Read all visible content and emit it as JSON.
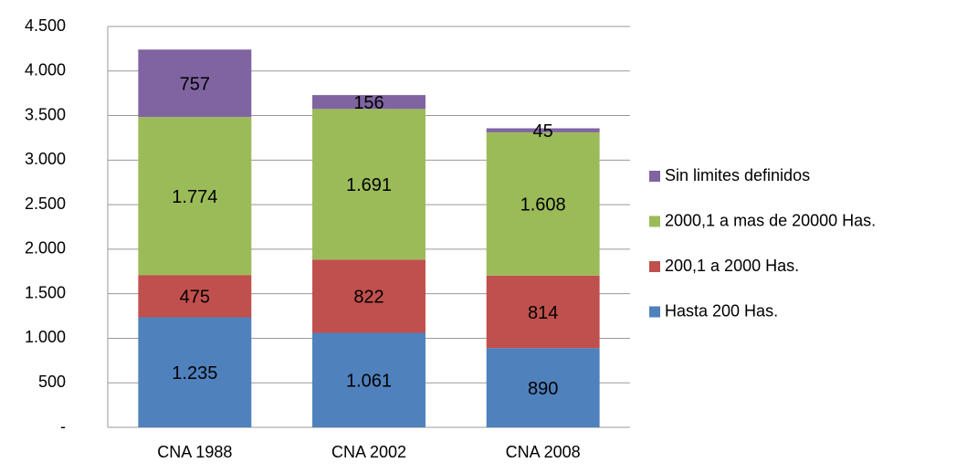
{
  "chart_data": {
    "type": "stacked_bar",
    "categories": [
      "CNA 1988",
      "CNA 2002",
      "CNA 2008"
    ],
    "series": [
      {
        "name": "Hasta 200 Has.",
        "color": "#4f81bd",
        "values": [
          1235,
          1061,
          890
        ],
        "value_labels": [
          "1.235",
          "1.061",
          "890"
        ]
      },
      {
        "name": "200,1 a 2000 Has.",
        "color": "#c0504d",
        "values": [
          475,
          822,
          814
        ],
        "value_labels": [
          "475",
          "822",
          "814"
        ]
      },
      {
        "name": "2000,1 a mas de 20000 Has.",
        "color": "#9bbb59",
        "values": [
          1774,
          1691,
          1608
        ],
        "value_labels": [
          "1.774",
          "1.691",
          "1.608"
        ]
      },
      {
        "name": "Sin limites definidos",
        "color": "#8064a2",
        "values": [
          757,
          156,
          45
        ],
        "value_labels": [
          "757",
          "156",
          "45"
        ]
      }
    ],
    "ylim": [
      0,
      4500
    ],
    "yticks": [
      {
        "value": 0,
        "label": "-"
      },
      500,
      {
        "value": 1000,
        "label": "1.000"
      },
      {
        "value": 1500,
        "label": "1.500"
      },
      {
        "value": 2000,
        "label": "2.000"
      },
      {
        "value": 2500,
        "label": "2.500"
      },
      {
        "value": 3000,
        "label": "3.000"
      },
      {
        "value": 3500,
        "label": "3.500"
      },
      {
        "value": 4000,
        "label": "4.000"
      },
      {
        "value": 4500,
        "label": "4.500"
      }
    ],
    "grid": true,
    "legend": "right"
  }
}
